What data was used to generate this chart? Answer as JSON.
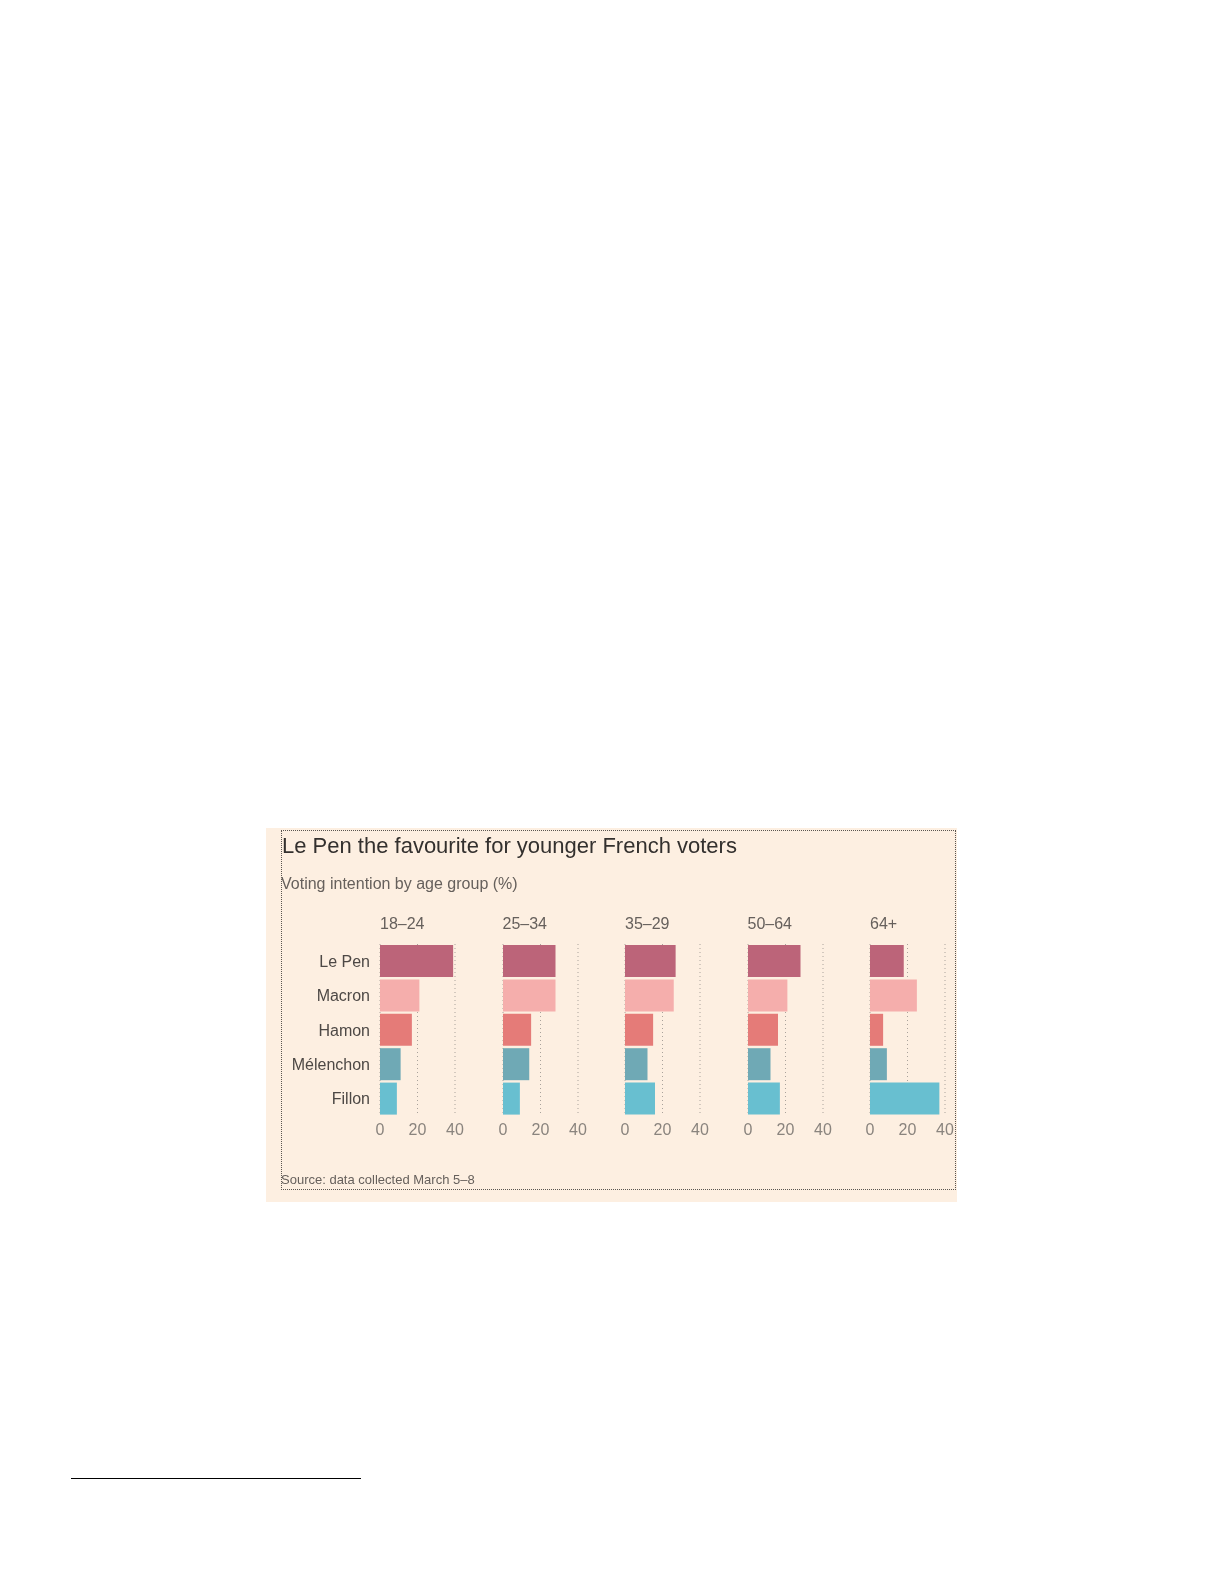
{
  "chart_data": [
    {
      "type": "other",
      "title": "Le Pen the favourite for younger French voters",
      "subtitle": "Voting intention by age group (%)",
      "annotations": [
        "Source: data collected March 5–8"
      ]
    },
    {
      "type": "bar",
      "title": "18–24",
      "orientation": "horizontal",
      "categories": [
        "Le Pen",
        "Macron",
        "Hamon",
        "Mélenchon",
        "Fillon"
      ],
      "values": [
        39,
        21,
        17,
        11,
        9
      ],
      "colors": [
        "#bc6479",
        "#f5aeac",
        "#e57b78",
        "#6fa9b5",
        "#68bfd0"
      ],
      "xlim": [
        0,
        40
      ],
      "xticks": [
        0,
        20,
        40
      ],
      "grid": "x"
    },
    {
      "type": "bar",
      "title": "25–34",
      "orientation": "horizontal",
      "categories": [
        null,
        null,
        null,
        null,
        null
      ],
      "values": [
        28,
        28,
        15,
        14,
        9
      ],
      "colors": [
        "#bc6479",
        "#f5aeac",
        "#e57b78",
        "#6fa9b5",
        "#68bfd0"
      ],
      "xlim": [
        0,
        40
      ],
      "xticks": [
        0,
        20,
        40
      ],
      "grid": "x"
    },
    {
      "type": "bar",
      "title": "35–29",
      "orientation": "horizontal",
      "categories": [
        null,
        null,
        null,
        null,
        null
      ],
      "values": [
        27,
        26,
        15,
        12,
        16
      ],
      "colors": [
        "#bc6479",
        "#f5aeac",
        "#e57b78",
        "#6fa9b5",
        "#68bfd0"
      ],
      "xlim": [
        0,
        40
      ],
      "xticks": [
        0,
        20,
        40
      ],
      "grid": "x"
    },
    {
      "type": "bar",
      "title": "50–64",
      "orientation": "horizontal",
      "categories": [
        null,
        null,
        null,
        null,
        null
      ],
      "values": [
        28,
        21,
        16,
        12,
        17
      ],
      "colors": [
        "#bc6479",
        "#f5aeac",
        "#e57b78",
        "#6fa9b5",
        "#68bfd0"
      ],
      "xlim": [
        0,
        40
      ],
      "xticks": [
        0,
        20,
        40
      ],
      "grid": "x"
    },
    {
      "type": "bar",
      "title": "64+",
      "orientation": "horizontal",
      "categories": [
        null,
        null,
        null,
        null,
        null
      ],
      "values": [
        18,
        25,
        7,
        9,
        37
      ],
      "colors": [
        "#bc6479",
        "#f5aeac",
        "#e57b78",
        "#6fa9b5",
        "#68bfd0"
      ],
      "xlim": [
        0,
        40
      ],
      "xticks": [
        0,
        20,
        40
      ],
      "grid": "x"
    }
  ]
}
